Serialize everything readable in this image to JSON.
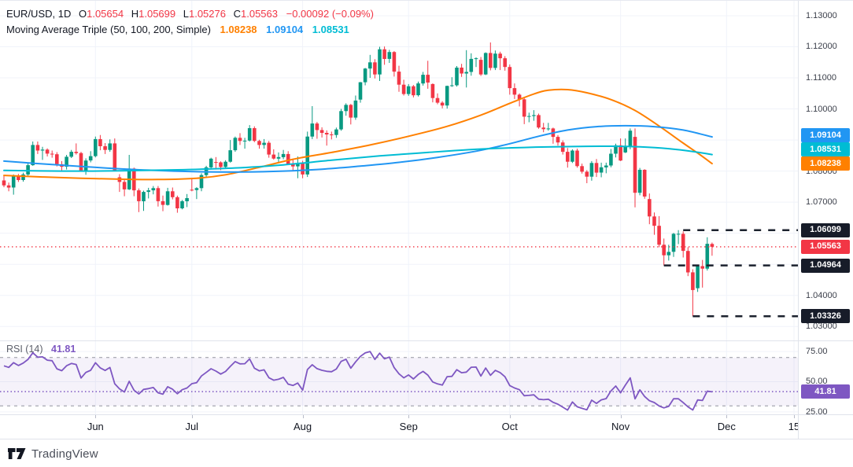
{
  "header": {
    "symbol_text": "EUR/USD, 1D",
    "ohlc": {
      "o_label": "O",
      "o": "1.05654",
      "h_label": "H",
      "h": "1.05699",
      "l_label": "L",
      "l": "1.05276",
      "c_label": "C",
      "c": "1.05563",
      "change": "−0.00092 (−0.09%)"
    },
    "ma": {
      "label": "Moving Average Triple (50, 100, 200, Simple)",
      "v50": "1.08238",
      "v100": "1.09104",
      "v200": "1.08531"
    }
  },
  "rsi_legend": {
    "label": "RSI (14)",
    "value": "41.81"
  },
  "footer": {
    "brand": "TradingView"
  },
  "colors": {
    "up": "#089981",
    "down": "#f23645",
    "orange": "#ff8000",
    "blue": "#2196f3",
    "cyan": "#00bcd4",
    "purple": "#7e57c2",
    "grid": "#f0f3fa",
    "level": "#1c222e",
    "level_label": "#171c29",
    "rsi_band": "#7e57c214",
    "band_line": "#787b86"
  },
  "chart_data": {
    "type": "candlestick",
    "symbol": "EUR/USD",
    "interval": "1D",
    "ylim": [
      1.0255,
      1.1348
    ],
    "price_ticks": [
      1.13,
      1.12,
      1.11,
      1.1,
      1.09,
      1.08,
      1.07,
      1.06,
      1.05,
      1.04,
      1.03
    ],
    "last_price": 1.05563,
    "last_change": -0.00092,
    "last_change_pct": -0.09,
    "x_axis": {
      "labels": [
        {
          "i": 19,
          "t": "Jun"
        },
        {
          "i": 39,
          "t": "Jul"
        },
        {
          "i": 62,
          "t": "Aug"
        },
        {
          "i": 84,
          "t": "Sep"
        },
        {
          "i": 105,
          "t": "Oct"
        },
        {
          "i": 128,
          "t": "Nov"
        },
        {
          "i": 150,
          "t": "Dec"
        },
        {
          "i": 164,
          "t": "15"
        }
      ]
    },
    "ohlc": [
      [
        1.077,
        1.0785,
        1.0748,
        1.0754
      ],
      [
        1.0754,
        1.0763,
        1.0735,
        1.0747
      ],
      [
        1.0747,
        1.0789,
        1.0724,
        1.0783
      ],
      [
        1.0783,
        1.0791,
        1.0765,
        1.0771
      ],
      [
        1.0771,
        1.0795,
        1.0766,
        1.0789
      ],
      [
        1.0789,
        1.0826,
        1.0785,
        1.0819
      ],
      [
        1.0819,
        1.0895,
        1.0817,
        1.0884
      ],
      [
        1.0884,
        1.0895,
        1.0855,
        1.0866
      ],
      [
        1.0866,
        1.0878,
        1.0836,
        1.0869
      ],
      [
        1.0869,
        1.0873,
        1.0847,
        1.0856
      ],
      [
        1.0856,
        1.0866,
        1.0843,
        1.0854
      ],
      [
        1.0854,
        1.0861,
        1.0815,
        1.0822
      ],
      [
        1.0822,
        1.0832,
        1.0801,
        1.0814
      ],
      [
        1.0814,
        1.0852,
        1.0805,
        1.0846
      ],
      [
        1.0846,
        1.0868,
        1.0842,
        1.0862
      ],
      [
        1.0862,
        1.0889,
        1.0853,
        1.0858
      ],
      [
        1.0858,
        1.0862,
        1.0798,
        1.0801
      ],
      [
        1.0801,
        1.0841,
        1.0788,
        1.0834
      ],
      [
        1.0834,
        1.0864,
        1.0828,
        1.0848
      ],
      [
        1.0848,
        1.0911,
        1.0844,
        1.0903
      ],
      [
        1.0903,
        1.0916,
        1.0867,
        1.088
      ],
      [
        1.088,
        1.089,
        1.0855,
        1.0868
      ],
      [
        1.0868,
        1.0902,
        1.0862,
        1.0889
      ],
      [
        1.0889,
        1.0905,
        1.08,
        1.0801
      ],
      [
        1.078,
        1.079,
        1.0733,
        1.0765
      ],
      [
        1.0765,
        1.0774,
        1.0719,
        1.0741
      ],
      [
        1.0741,
        1.0852,
        1.0739,
        1.0808
      ],
      [
        1.0808,
        1.0811,
        1.0719,
        1.0738
      ],
      [
        1.0738,
        1.0744,
        1.0668,
        1.0703
      ],
      [
        1.0703,
        1.0737,
        1.0672,
        1.0733
      ],
      [
        1.0733,
        1.0746,
        1.0712,
        1.0738
      ],
      [
        1.0738,
        1.0752,
        1.0725,
        1.0745
      ],
      [
        1.0745,
        1.0752,
        1.0686,
        1.0703
      ],
      [
        1.0703,
        1.0721,
        1.0671,
        1.0691
      ],
      [
        1.0691,
        1.0746,
        1.0689,
        1.0735
      ],
      [
        1.0735,
        1.0747,
        1.0709,
        1.0716
      ],
      [
        1.0716,
        1.0721,
        1.0666,
        1.068
      ],
      [
        1.068,
        1.0707,
        1.0677,
        1.0703
      ],
      [
        1.0703,
        1.0726,
        1.0684,
        1.0713
      ],
      [
        1.074,
        1.0776,
        1.0735,
        1.0739
      ],
      [
        1.0739,
        1.0748,
        1.071,
        1.0745
      ],
      [
        1.0745,
        1.0793,
        1.0735,
        1.0787
      ],
      [
        1.0787,
        1.0817,
        1.0781,
        1.0812
      ],
      [
        1.0812,
        1.0843,
        1.0805,
        1.084
      ],
      [
        1.0829,
        1.0845,
        1.0805,
        1.0828
      ],
      [
        1.0828,
        1.0831,
        1.0803,
        1.0813
      ],
      [
        1.0813,
        1.0835,
        1.0807,
        1.083
      ],
      [
        1.083,
        1.09,
        1.0827,
        1.0867
      ],
      [
        1.0867,
        1.0911,
        1.0862,
        1.0907
      ],
      [
        1.0907,
        1.0922,
        1.0884,
        1.0897
      ],
      [
        1.0897,
        1.0907,
        1.0872,
        1.0898
      ],
      [
        1.0898,
        1.0948,
        1.0895,
        1.0938
      ],
      [
        1.0938,
        1.0944,
        1.0893,
        1.0897
      ],
      [
        1.0897,
        1.0901,
        1.0872,
        1.0884
      ],
      [
        1.0884,
        1.0903,
        1.0872,
        1.0891
      ],
      [
        1.0891,
        1.0897,
        1.0843,
        1.0853
      ],
      [
        1.0853,
        1.087,
        1.0837,
        1.084
      ],
      [
        1.084,
        1.086,
        1.0826,
        1.0845
      ],
      [
        1.0845,
        1.0868,
        1.0838,
        1.0855
      ],
      [
        1.0855,
        1.0864,
        1.0819,
        1.0822
      ],
      [
        1.0822,
        1.0836,
        1.0799,
        1.0815
      ],
      [
        1.0815,
        1.0847,
        1.0777,
        1.0826
      ],
      [
        1.0826,
        1.0833,
        1.0777,
        1.0789
      ],
      [
        1.0789,
        1.0927,
        1.0781,
        1.0911
      ],
      [
        1.0911,
        1.1009,
        1.0903,
        1.0953
      ],
      [
        1.0953,
        1.0958,
        1.0904,
        1.0932
      ],
      [
        1.0932,
        1.0941,
        1.0908,
        1.0923
      ],
      [
        1.0923,
        1.0931,
        1.0882,
        1.0918
      ],
      [
        1.0918,
        1.0927,
        1.0902,
        1.0916
      ],
      [
        1.0916,
        1.094,
        1.0907,
        1.0934
      ],
      [
        1.0934,
        1.1,
        1.093,
        1.0993
      ],
      [
        1.0993,
        1.1018,
        1.0978,
        1.1013
      ],
      [
        1.1013,
        1.1016,
        1.095,
        1.0972
      ],
      [
        1.0972,
        1.1043,
        1.0965,
        1.1027
      ],
      [
        1.103,
        1.1087,
        1.102,
        1.1086
      ],
      [
        1.1086,
        1.1132,
        1.1076,
        1.113
      ],
      [
        1.113,
        1.1174,
        1.11,
        1.115
      ],
      [
        1.115,
        1.116,
        1.1098,
        1.1111
      ],
      [
        1.1111,
        1.12,
        1.109,
        1.1192
      ],
      [
        1.1192,
        1.1201,
        1.1142,
        1.1161
      ],
      [
        1.1161,
        1.119,
        1.1148,
        1.1183
      ],
      [
        1.1183,
        1.1186,
        1.1104,
        1.112
      ],
      [
        1.112,
        1.1139,
        1.1055,
        1.1078
      ],
      [
        1.1078,
        1.1094,
        1.1043,
        1.1048
      ],
      [
        1.1048,
        1.108,
        1.1042,
        1.1073
      ],
      [
        1.1073,
        1.1077,
        1.1037,
        1.1044
      ],
      [
        1.1044,
        1.1088,
        1.104,
        1.1082
      ],
      [
        1.1082,
        1.1119,
        1.1075,
        1.111
      ],
      [
        1.111,
        1.1155,
        1.1065,
        1.1085
      ],
      [
        1.108,
        1.1082,
        1.1021,
        1.1035
      ],
      [
        1.1035,
        1.105,
        1.1015,
        1.102
      ],
      [
        1.102,
        1.1025,
        1.1002,
        1.1011
      ],
      [
        1.1011,
        1.1075,
        1.1001,
        1.1074
      ],
      [
        1.1074,
        1.1102,
        1.1071,
        1.1076
      ],
      [
        1.1076,
        1.1138,
        1.1072,
        1.1133
      ],
      [
        1.1133,
        1.1145,
        1.1103,
        1.1114
      ],
      [
        1.1114,
        1.1189,
        1.1069,
        1.1119
      ],
      [
        1.1119,
        1.1179,
        1.1107,
        1.1161
      ],
      [
        1.1161,
        1.1166,
        1.1135,
        1.1163
      ],
      [
        1.1158,
        1.1167,
        1.1106,
        1.1111
      ],
      [
        1.1111,
        1.1182,
        1.1109,
        1.118
      ],
      [
        1.118,
        1.1214,
        1.1124,
        1.1132
      ],
      [
        1.1132,
        1.1188,
        1.1125,
        1.1178
      ],
      [
        1.1178,
        1.1184,
        1.1125,
        1.1163
      ],
      [
        1.1163,
        1.117,
        1.1123,
        1.1135
      ],
      [
        1.1135,
        1.1143,
        1.1046,
        1.1067
      ],
      [
        1.1067,
        1.1082,
        1.1032,
        1.1046
      ],
      [
        1.1046,
        1.105,
        1.1008,
        1.1031
      ],
      [
        1.1031,
        1.1038,
        1.0951,
        1.0975
      ],
      [
        1.0975,
        1.0988,
        1.0957,
        1.0977
      ],
      [
        1.0977,
        1.0996,
        1.0962,
        1.098
      ],
      [
        1.098,
        1.0985,
        1.0936,
        1.094
      ],
      [
        1.094,
        1.0955,
        1.0925,
        1.0935
      ],
      [
        1.0935,
        1.0955,
        1.093,
        1.0937
      ],
      [
        1.0937,
        1.094,
        1.0888,
        1.091
      ],
      [
        1.091,
        1.0916,
        1.0882,
        1.0892
      ],
      [
        1.0892,
        1.0899,
        1.0853,
        1.0862
      ],
      [
        1.0862,
        1.0874,
        1.0811,
        1.083
      ],
      [
        1.083,
        1.087,
        1.0826,
        1.0866
      ],
      [
        1.0866,
        1.0872,
        1.0811,
        1.0816
      ],
      [
        1.0816,
        1.0824,
        1.0792,
        1.0798
      ],
      [
        1.0798,
        1.0803,
        1.0761,
        1.0782
      ],
      [
        1.0782,
        1.0832,
        1.0769,
        1.0826
      ],
      [
        1.0826,
        1.0839,
        1.0781,
        1.0795
      ],
      [
        1.0795,
        1.0827,
        1.078,
        1.0812
      ],
      [
        1.0812,
        1.0827,
        1.0793,
        1.0818
      ],
      [
        1.0818,
        1.0871,
        1.0812,
        1.0856
      ],
      [
        1.0856,
        1.0888,
        1.0844,
        1.0883
      ],
      [
        1.0883,
        1.0905,
        1.0832,
        1.0834
      ],
      [
        1.086,
        1.0905,
        1.0858,
        1.0879
      ],
      [
        1.0879,
        1.0937,
        1.087,
        1.093
      ],
      [
        1.091,
        1.0937,
        1.0683,
        1.073
      ],
      [
        1.073,
        1.081,
        1.0722,
        1.0804
      ],
      [
        1.0804,
        1.0806,
        1.0711,
        1.0718
      ],
      [
        1.071,
        1.0728,
        1.0629,
        1.0654
      ],
      [
        1.0654,
        1.0667,
        1.0595,
        1.0624
      ],
      [
        1.0624,
        1.0655,
        1.0555,
        1.0563
      ],
      [
        1.0563,
        1.0583,
        1.0496,
        1.0529
      ],
      [
        1.0529,
        1.0563,
        1.0512,
        1.054
      ],
      [
        1.054,
        1.0601,
        1.0524,
        1.0598
      ],
      [
        1.0598,
        1.061,
        1.0565,
        1.0598
      ],
      [
        1.0598,
        1.0606,
        1.0522,
        1.0543
      ],
      [
        1.0543,
        1.0555,
        1.0462,
        1.0474
      ],
      [
        1.0474,
        1.0484,
        1.0333,
        1.0417
      ],
      [
        1.0423,
        1.0497,
        1.0411,
        1.0494
      ],
      [
        1.0494,
        1.0514,
        1.0425,
        1.0486
      ],
      [
        1.0486,
        1.0587,
        1.048,
        1.0566
      ],
      [
        1.05654,
        1.05699,
        1.05276,
        1.05563
      ]
    ],
    "overlays": [
      {
        "name": "SMA 50",
        "period": 50,
        "color": "#ff8000",
        "last": 1.08238,
        "points": [
          [
            0,
            1.0786
          ],
          [
            8,
            1.0781
          ],
          [
            16,
            1.0777
          ],
          [
            24,
            1.0774
          ],
          [
            32,
            1.0773
          ],
          [
            40,
            1.0777
          ],
          [
            46,
            1.0788
          ],
          [
            53,
            1.0812
          ],
          [
            60,
            1.0838
          ],
          [
            68,
            1.086
          ],
          [
            76,
            1.0884
          ],
          [
            84,
            1.0912
          ],
          [
            92,
            1.0944
          ],
          [
            99,
            1.098
          ],
          [
            105,
            1.1018
          ],
          [
            110,
            1.1048
          ],
          [
            113,
            1.106
          ],
          [
            117,
            1.1062
          ],
          [
            121,
            1.1052
          ],
          [
            126,
            1.103
          ],
          [
            131,
            1.0995
          ],
          [
            136,
            1.0945
          ],
          [
            141,
            1.089
          ],
          [
            144,
            1.0858
          ],
          [
            147,
            1.0824
          ]
        ]
      },
      {
        "name": "SMA 100",
        "period": 100,
        "color": "#2196f3",
        "last": 1.09104,
        "points": [
          [
            0,
            1.0832
          ],
          [
            10,
            1.0821
          ],
          [
            20,
            1.0811
          ],
          [
            30,
            1.0803
          ],
          [
            40,
            1.0798
          ],
          [
            50,
            1.0797
          ],
          [
            58,
            1.08
          ],
          [
            66,
            1.0806
          ],
          [
            74,
            1.0816
          ],
          [
            82,
            1.0828
          ],
          [
            90,
            1.0844
          ],
          [
            98,
            1.0864
          ],
          [
            105,
            1.0888
          ],
          [
            111,
            1.0912
          ],
          [
            117,
            1.0932
          ],
          [
            123,
            1.0943
          ],
          [
            129,
            1.0946
          ],
          [
            135,
            1.0943
          ],
          [
            141,
            1.0932
          ],
          [
            147,
            1.091
          ]
        ]
      },
      {
        "name": "SMA 200",
        "period": 200,
        "color": "#00bcd4",
        "last": 1.08531,
        "points": [
          [
            0,
            1.0802
          ],
          [
            12,
            1.08
          ],
          [
            24,
            1.0801
          ],
          [
            36,
            1.0804
          ],
          [
            48,
            1.081
          ],
          [
            58,
            1.082
          ],
          [
            68,
            1.0835
          ],
          [
            78,
            1.0849
          ],
          [
            88,
            1.086
          ],
          [
            98,
            1.087
          ],
          [
            108,
            1.0876
          ],
          [
            118,
            1.0879
          ],
          [
            126,
            1.088
          ],
          [
            132,
            1.0878
          ],
          [
            138,
            1.0872
          ],
          [
            143,
            1.0863
          ],
          [
            147,
            1.0853
          ]
        ]
      }
    ],
    "levels": [
      {
        "price": 1.06099,
        "from_index": 141
      },
      {
        "price": 1.04964,
        "from_index": 137
      },
      {
        "price": 1.03326,
        "from_index": 143
      }
    ],
    "rsi": {
      "name": "RSI",
      "period": 14,
      "last": 41.81,
      "band": [
        30,
        70
      ],
      "ticks": [
        75,
        50,
        25
      ],
      "ylim": [
        23,
        83.5
      ],
      "warmup_closes": [
        1.0644,
        1.0625,
        1.0615,
        1.0661,
        1.0643,
        1.0656,
        1.07,
        1.0725,
        1.0698,
        1.0731,
        1.0716,
        1.0672,
        1.0687,
        1.0721,
        1.0764,
        1.077
      ]
    }
  }
}
